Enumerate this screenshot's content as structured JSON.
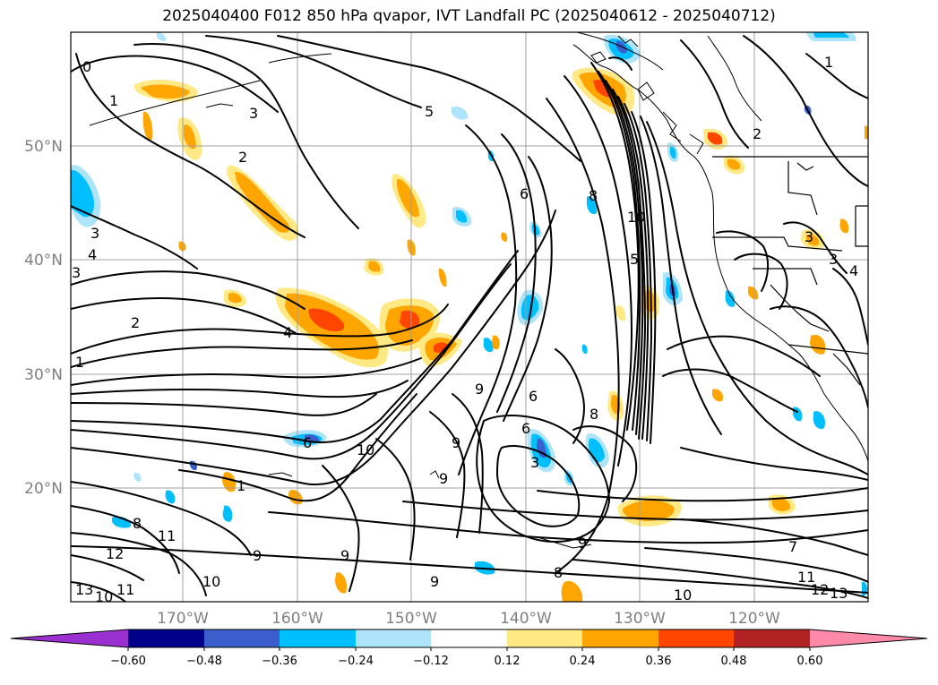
{
  "title": "2025040400 F012 850 hPa qvapor, IVT Landfall PC (2025040612 - 2025040712)",
  "map": {
    "lat_labels": [
      "50°N",
      "40°N",
      "30°N",
      "20°N"
    ],
    "lon_labels": [
      "170°W",
      "160°W",
      "150°W",
      "140°W",
      "130°W",
      "120°W"
    ]
  },
  "colorbar": {
    "ticks": [
      "−0.60",
      "−0.48",
      "−0.36",
      "−0.24",
      "−0.12",
      "0.12",
      "0.24",
      "0.36",
      "0.48",
      "0.60"
    ],
    "colors": {
      "lt_min": "#9b30d0",
      "b1": "#00008b",
      "b2": "#3a5fcd",
      "b3": "#00bfff",
      "b4": "#aee4fa",
      "b5": "#ffffff",
      "b6": "#ffe985",
      "b7": "#ffa500",
      "b8": "#ff4500",
      "b9": "#b22222",
      "gt_max": "#ff89a8"
    }
  },
  "contour_labels": [
    "0",
    "1",
    "3",
    "5",
    "2",
    "6",
    "8",
    "10",
    "4",
    "3",
    "2",
    "1",
    "3",
    "4",
    "10",
    "9",
    "6",
    "6",
    "8",
    "9",
    "6",
    "3",
    "9",
    "1",
    "8",
    "11",
    "12",
    "13",
    "10",
    "11",
    "9",
    "9",
    "10",
    "8",
    "9",
    "7",
    "11",
    "12",
    "13",
    "10",
    "4",
    "3",
    "2",
    "3",
    "1",
    "5",
    "9"
  ]
}
